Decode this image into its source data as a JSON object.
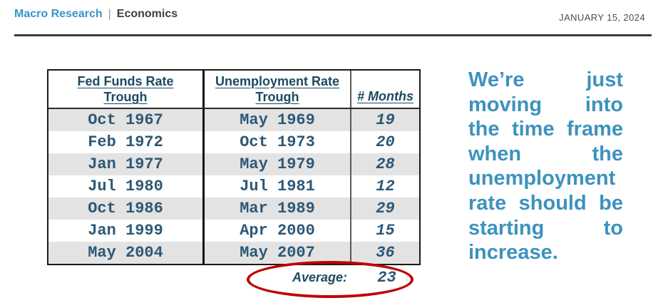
{
  "header": {
    "brand": "Macro Research",
    "divider": "|",
    "section": "Economics",
    "date": "JANUARY 15, 2024"
  },
  "table": {
    "columns": [
      [
        "Fed Funds Rate",
        "Trough"
      ],
      [
        "Unemployment Rate",
        "Trough"
      ],
      [
        "# Months"
      ]
    ],
    "rows": [
      [
        "Oct 1967",
        "May 1969",
        "19"
      ],
      [
        "Feb 1972",
        "Oct 1973",
        "20"
      ],
      [
        "Jan 1977",
        "May 1979",
        "28"
      ],
      [
        "Jul 1980",
        "Jul 1981",
        "12"
      ],
      [
        "Oct 1986",
        "Mar 1989",
        "29"
      ],
      [
        "Jan 1999",
        "Apr 2000",
        "15"
      ],
      [
        "May 2004",
        "May 2007",
        "36"
      ]
    ],
    "average_label": "Average:",
    "average_value": "23"
  },
  "annotation": {
    "lines": [
      "We’re just",
      "moving into",
      "the time frame",
      "when the",
      "unemployment",
      "rate should be",
      "starting to",
      "increase."
    ],
    "full_text": "We’re just moving into the time frame when the unemployment rate should be starting to increase."
  },
  "colors": {
    "brand_blue": "#3996C4",
    "table_header_text": "#1C4A60",
    "table_value_text": "#2E5876",
    "annotation_blue": "#3D92BE",
    "highlight_red": "#BF0000",
    "row_alt_gray": "#E3E3E3"
  }
}
